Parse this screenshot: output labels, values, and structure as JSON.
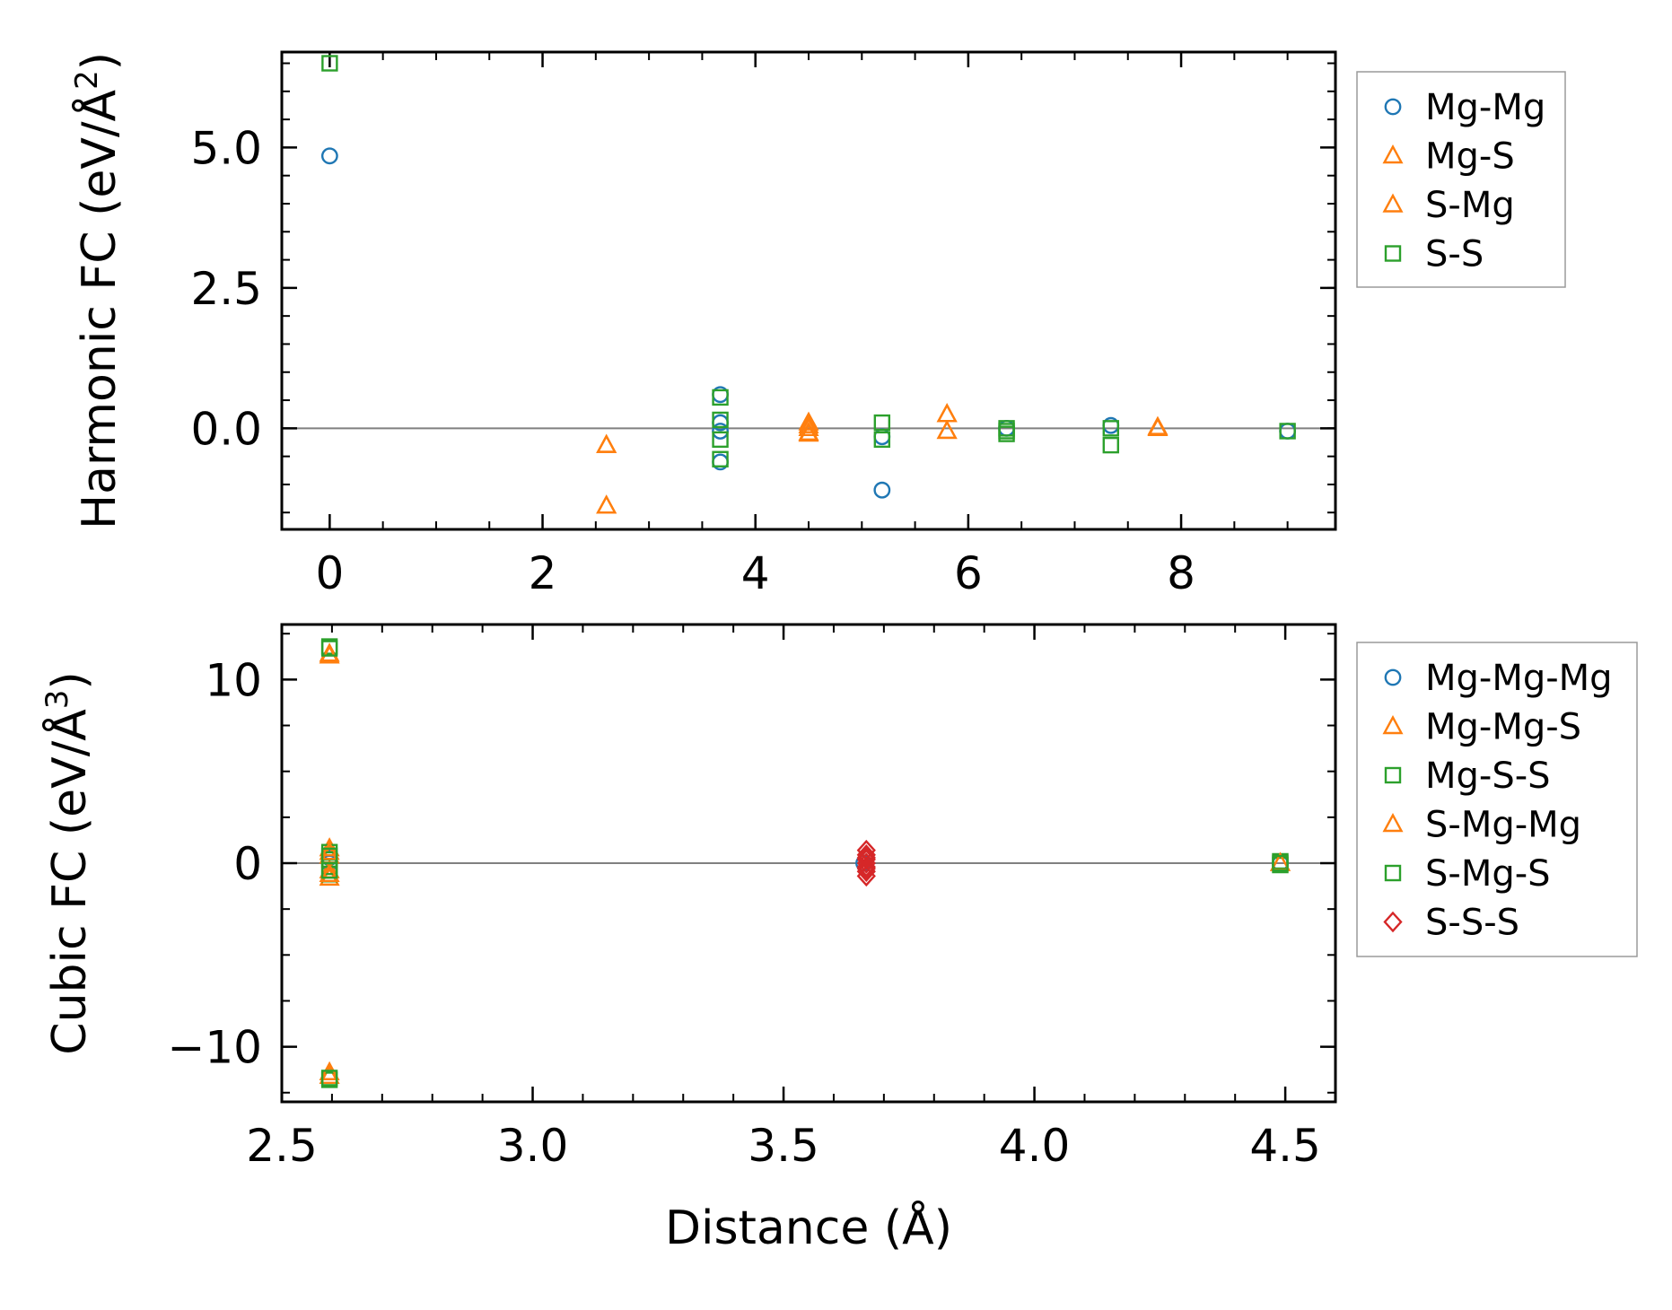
{
  "chart_data": [
    {
      "type": "scatter",
      "ylabel_main": "Harmonic FC (eV/Å",
      "ylabel_sup": "2",
      "ylabel_tail": ")",
      "xlabel": "",
      "xlim": [
        -0.45,
        9.45
      ],
      "ylim": [
        -1.8,
        6.7
      ],
      "xticks": [
        0,
        2,
        4,
        6,
        8
      ],
      "xtick_labels": [
        "0",
        "2",
        "4",
        "6",
        "8"
      ],
      "yticks": [
        0.0,
        2.5,
        5.0
      ],
      "ytick_labels": [
        "0.0",
        "2.5",
        "5.0"
      ],
      "zero_line": true,
      "legend_position": "outside-right",
      "series": [
        {
          "name": "Mg-Mg",
          "marker": "circle",
          "color": "#1f77b4",
          "points": [
            [
              0,
              4.85
            ],
            [
              3.67,
              0.6
            ],
            [
              3.67,
              0.1
            ],
            [
              3.67,
              -0.05
            ],
            [
              3.67,
              -0.6
            ],
            [
              5.19,
              -0.15
            ],
            [
              5.19,
              -1.1
            ],
            [
              6.36,
              0.0
            ],
            [
              7.34,
              0.05
            ],
            [
              9.0,
              -0.05
            ]
          ]
        },
        {
          "name": "Mg-S",
          "marker": "triangle",
          "color": "#ff7f0e",
          "points": [
            [
              2.6,
              -0.3
            ],
            [
              2.6,
              -1.38
            ],
            [
              4.5,
              0.1
            ],
            [
              4.5,
              0.0
            ],
            [
              4.5,
              -0.1
            ],
            [
              5.8,
              0.25
            ],
            [
              5.8,
              -0.05
            ],
            [
              7.78,
              0.02
            ]
          ]
        },
        {
          "name": "S-Mg",
          "marker": "triangle",
          "color": "#ff7f0e",
          "points": [
            [
              2.6,
              -0.3
            ],
            [
              2.6,
              -1.38
            ],
            [
              4.5,
              0.05
            ],
            [
              4.5,
              -0.08
            ],
            [
              5.8,
              0.25
            ],
            [
              5.8,
              -0.05
            ],
            [
              7.78,
              0.0
            ]
          ]
        },
        {
          "name": "S-S",
          "marker": "square",
          "color": "#2ca02c",
          "points": [
            [
              0,
              6.5
            ],
            [
              3.67,
              0.55
            ],
            [
              3.67,
              0.15
            ],
            [
              3.67,
              -0.2
            ],
            [
              3.67,
              -0.55
            ],
            [
              5.19,
              0.1
            ],
            [
              5.19,
              -0.2
            ],
            [
              6.36,
              0.0
            ],
            [
              6.36,
              -0.05
            ],
            [
              6.36,
              -0.1
            ],
            [
              7.34,
              0.0
            ],
            [
              7.34,
              -0.3
            ],
            [
              9.0,
              -0.05
            ]
          ]
        }
      ]
    },
    {
      "type": "scatter",
      "ylabel_main": "Cubic FC (eV/Å",
      "ylabel_sup": "3",
      "ylabel_tail": ")",
      "xlabel": "Distance (Å)",
      "xlim": [
        2.5,
        4.6
      ],
      "ylim": [
        -13,
        13
      ],
      "xticks": [
        2.5,
        3.0,
        3.5,
        4.0,
        4.5
      ],
      "xtick_labels": [
        "2.5",
        "3.0",
        "3.5",
        "4.0",
        "4.5"
      ],
      "yticks": [
        -10,
        0,
        10
      ],
      "ytick_labels": [
        "−10",
        "0",
        "10"
      ],
      "zero_line": true,
      "legend_position": "outside-right",
      "series": [
        {
          "name": "Mg-Mg-Mg",
          "marker": "circle",
          "color": "#1f77b4",
          "points": [
            [
              2.595,
              0.0
            ],
            [
              2.595,
              0.3
            ],
            [
              3.66,
              0.0
            ],
            [
              4.49,
              0.0
            ]
          ]
        },
        {
          "name": "Mg-Mg-S",
          "marker": "triangle",
          "color": "#ff7f0e",
          "points": [
            [
              2.595,
              11.4
            ],
            [
              2.595,
              -11.6
            ],
            [
              2.595,
              0.8
            ],
            [
              2.595,
              0.4
            ],
            [
              2.595,
              -0.4
            ],
            [
              2.595,
              -0.8
            ],
            [
              4.49,
              0.0
            ]
          ]
        },
        {
          "name": "Mg-S-S",
          "marker": "square",
          "color": "#2ca02c",
          "points": [
            [
              2.595,
              11.8
            ],
            [
              2.595,
              -11.8
            ],
            [
              2.595,
              0.6
            ],
            [
              2.595,
              0.2
            ],
            [
              2.595,
              -0.2
            ],
            [
              2.595,
              -0.6
            ],
            [
              4.49,
              0.1
            ],
            [
              4.49,
              -0.1
            ]
          ]
        },
        {
          "name": "S-Mg-Mg",
          "marker": "triangle",
          "color": "#ff7f0e",
          "points": [
            [
              2.595,
              11.3
            ],
            [
              2.595,
              -11.4
            ],
            [
              2.595,
              0.6
            ],
            [
              2.595,
              -0.6
            ],
            [
              4.49,
              0.0
            ]
          ]
        },
        {
          "name": "S-Mg-S",
          "marker": "square",
          "color": "#2ca02c",
          "points": [
            [
              2.595,
              11.7
            ],
            [
              2.595,
              -11.7
            ],
            [
              2.595,
              0.4
            ],
            [
              2.595,
              -0.4
            ],
            [
              4.49,
              0.0
            ]
          ]
        },
        {
          "name": "S-S-S",
          "marker": "diamond",
          "color": "#d62728",
          "points": [
            [
              3.665,
              0.7
            ],
            [
              3.665,
              0.45
            ],
            [
              3.665,
              0.2
            ],
            [
              3.665,
              0.0
            ],
            [
              3.665,
              -0.2
            ],
            [
              3.665,
              -0.45
            ],
            [
              3.665,
              -0.7
            ],
            [
              3.665,
              0.3
            ],
            [
              3.665,
              -0.3
            ]
          ]
        }
      ]
    }
  ]
}
